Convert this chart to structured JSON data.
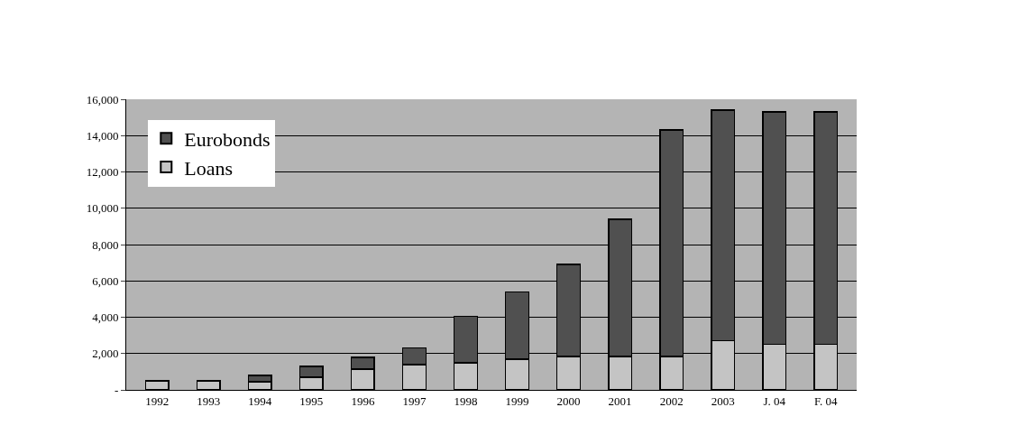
{
  "chart_data": {
    "type": "bar",
    "stacked": true,
    "categories": [
      "1992",
      "1993",
      "1994",
      "1995",
      "1996",
      "1997",
      "1998",
      "1999",
      "2000",
      "2001",
      "2002",
      "2003",
      "J. 04",
      "F. 04"
    ],
    "series": [
      {
        "name": "Loans",
        "color": "#c4c4c4",
        "values": [
          500,
          500,
          450,
          700,
          1150,
          1400,
          1500,
          1700,
          1850,
          1850,
          1850,
          2700,
          2500,
          2500
        ]
      },
      {
        "name": "Eurobonds",
        "color": "#505050",
        "values": [
          null,
          null,
          350,
          600,
          650,
          900,
          2550,
          3700,
          5050,
          7550,
          12450,
          12700,
          12800,
          12800
        ]
      }
    ],
    "ylim": [
      0,
      16000
    ],
    "yticks": [
      {
        "value": 0,
        "label": "-"
      },
      {
        "value": 2000,
        "label": "2,000"
      },
      {
        "value": 4000,
        "label": "4,000"
      },
      {
        "value": 6000,
        "label": "6,000"
      },
      {
        "value": 8000,
        "label": "8,000"
      },
      {
        "value": 10000,
        "label": "10,000"
      },
      {
        "value": 12000,
        "label": "12,000"
      },
      {
        "value": 14000,
        "label": "14,000"
      },
      {
        "value": 16000,
        "label": "16,000"
      }
    ],
    "grid": "y",
    "legend": "top left"
  }
}
